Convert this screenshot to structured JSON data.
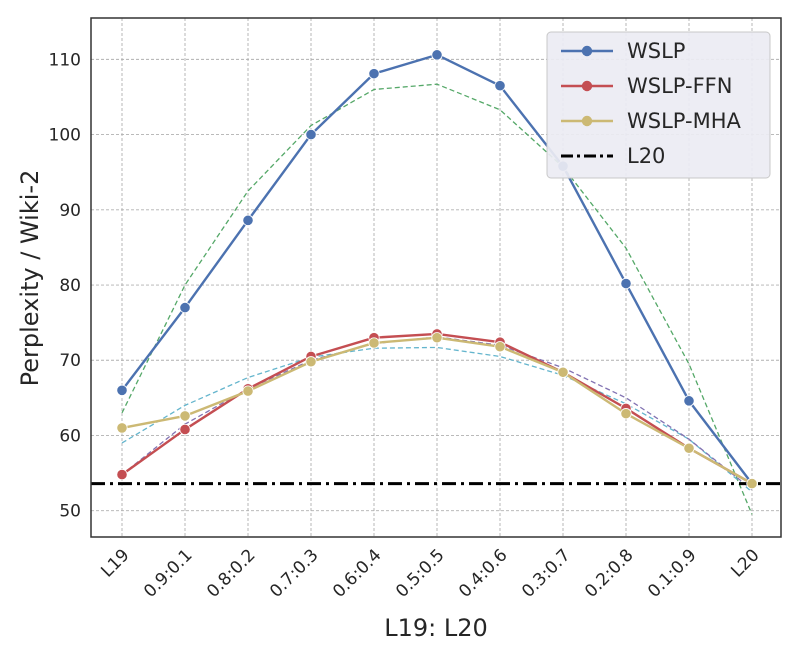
{
  "chart_data": {
    "type": "line",
    "title": "",
    "xlabel": "L19: L20",
    "ylabel": "Perplexity / Wiki-2",
    "categories": [
      "L19",
      "0.9:0.1",
      "0.8:0.2",
      "0.7:0.3",
      "0.6:0.4",
      "0.5:0.5",
      "0.4:0.6",
      "0.3:0.7",
      "0.2:0.8",
      "0.1:0.9",
      "L20"
    ],
    "ylim": [
      46.5,
      115.5
    ],
    "yticks": [
      50,
      60,
      70,
      80,
      90,
      100,
      110
    ],
    "grid": true,
    "legend_position": "top-right",
    "series": [
      {
        "name": "WSLP",
        "color": "#4c72b0",
        "marker": "circle",
        "values": [
          66.0,
          77.0,
          88.6,
          100.0,
          108.1,
          110.6,
          106.5,
          95.8,
          80.2,
          64.6,
          53.6
        ]
      },
      {
        "name": "WSLP-FFN",
        "color": "#c44e52",
        "marker": "circle",
        "values": [
          54.8,
          60.8,
          66.2,
          70.5,
          73.0,
          73.5,
          72.4,
          68.4,
          63.6,
          58.3,
          53.6
        ]
      },
      {
        "name": "WSLP-MHA",
        "color": "#ccb974",
        "marker": "circle",
        "values": [
          61.0,
          62.6,
          65.9,
          69.8,
          72.3,
          73.0,
          71.8,
          68.4,
          62.9,
          58.3,
          53.6
        ]
      }
    ],
    "reference_line": {
      "name": "L20",
      "value": 53.6,
      "color": "#000000",
      "style": "dashdot"
    },
    "fit_lines": [
      {
        "color": "#55a868",
        "values": [
          63.0,
          80.0,
          92.5,
          101.2,
          106.0,
          106.7,
          103.3,
          95.7,
          84.9,
          69.5,
          49.5
        ]
      },
      {
        "color": "#64b5cd",
        "values": [
          59.0,
          64.0,
          67.7,
          70.4,
          71.6,
          71.7,
          70.5,
          68.0,
          64.2,
          59.5,
          52.5
        ]
      },
      {
        "color": "#8172b2",
        "values": [
          54.8,
          61.5,
          66.2,
          70.0,
          72.2,
          73.1,
          72.0,
          69.0,
          65.0,
          59.5,
          52.8
        ]
      }
    ]
  }
}
